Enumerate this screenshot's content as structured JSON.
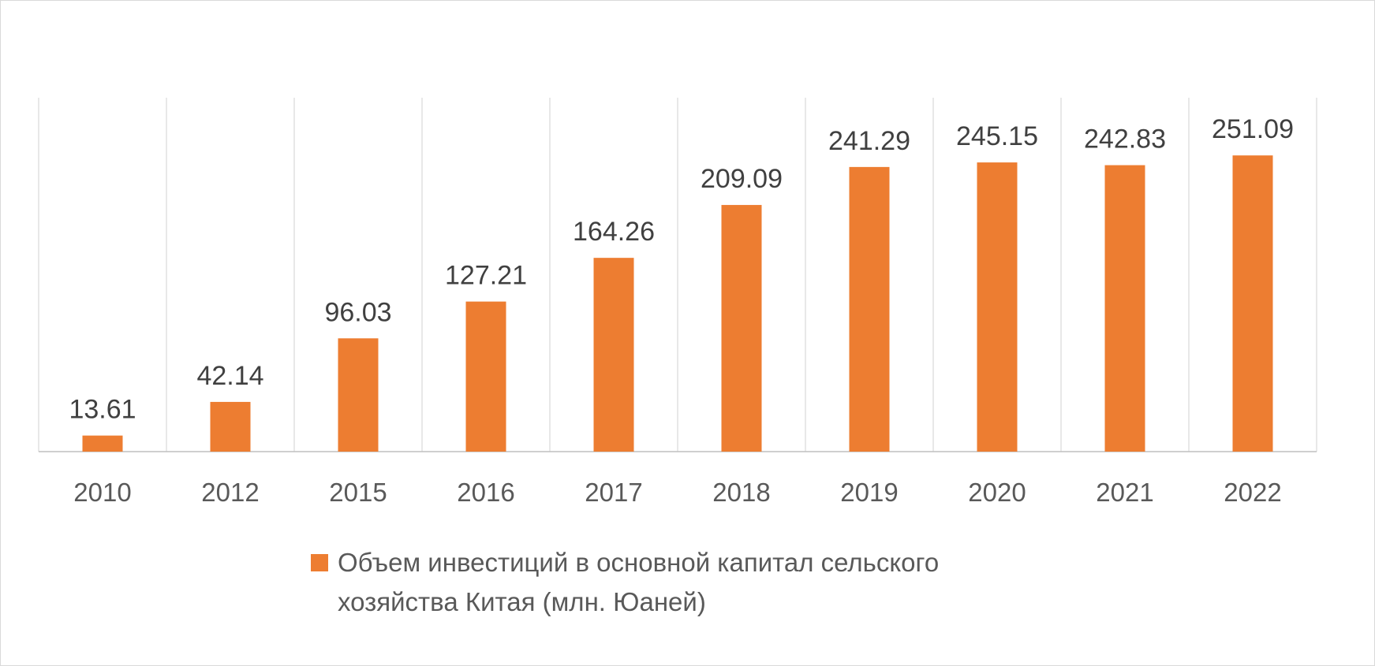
{
  "chart_data": {
    "type": "bar",
    "categories": [
      "2010",
      "2012",
      "2015",
      "2016",
      "2017",
      "2018",
      "2019",
      "2020",
      "2021",
      "2022"
    ],
    "series": [
      {
        "name": "Объем инвестиций в основной капитал сельского хозяйства Китая (млн. Юаней)",
        "values": [
          13.61,
          42.14,
          96.03,
          127.21,
          164.26,
          209.09,
          241.29,
          245.15,
          242.83,
          251.09
        ],
        "data_labels": [
          "13.61",
          "42.14",
          "96.03",
          "127.21",
          "164.26",
          "209.09",
          "241.29",
          "245.15",
          "242.83",
          "251.09"
        ]
      }
    ],
    "ylim": [
      0,
      300
    ],
    "grid": "vertical",
    "legend_position": "bottom",
    "colors": {
      "bar": "#ED7D31",
      "label": "#404040",
      "tick": "#595959",
      "grid": "#d9d9d9",
      "axis": "#bfbfbf"
    }
  }
}
